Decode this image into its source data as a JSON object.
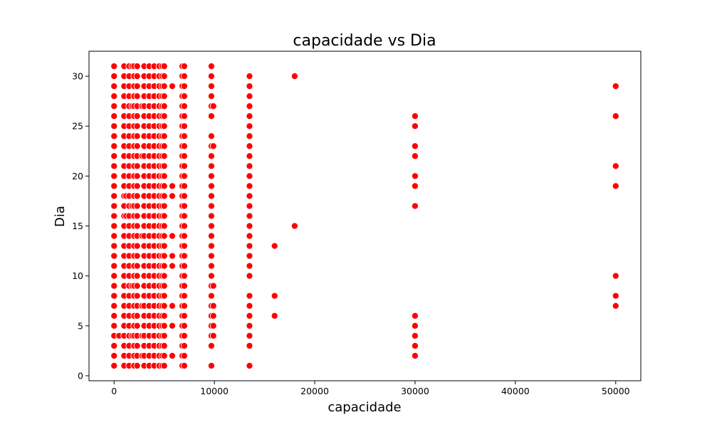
{
  "chart_data": {
    "type": "scatter",
    "title": "capacidade vs Dia",
    "xlabel": "capacidade",
    "ylabel": "Dia",
    "xlim": [
      -2500,
      52500
    ],
    "ylim": [
      -0.5,
      32.5
    ],
    "xticks": [
      0,
      10000,
      20000,
      30000,
      40000,
      50000
    ],
    "yticks": [
      0,
      5,
      10,
      15,
      20,
      25,
      30
    ],
    "xtick_labels": [
      "0",
      "10000",
      "20000",
      "30000",
      "40000",
      "50000"
    ],
    "ytick_labels": [
      "0",
      "5",
      "10",
      "15",
      "20",
      "25",
      "30"
    ],
    "grid": false,
    "legend": "none",
    "marker_color": "#ff0000",
    "marker_edge_color": "#ffffff",
    "series": [
      {
        "columns": [
          {
            "x": 0,
            "days": [
              1,
              2,
              3,
              4,
              5,
              6,
              7,
              8,
              9,
              10,
              11,
              12,
              13,
              14,
              15,
              16,
              17,
              18,
              19,
              20,
              21,
              22,
              23,
              24,
              25,
              26,
              27,
              28,
              29,
              30,
              31
            ]
          },
          {
            "x": 500,
            "days": [
              4
            ]
          },
          {
            "x": 1000,
            "days": [
              1,
              2,
              3,
              4,
              5,
              6,
              7,
              8,
              9,
              10,
              11,
              12,
              13,
              14,
              15,
              16,
              17,
              18,
              19,
              20,
              21,
              22,
              23,
              24,
              25,
              26,
              27,
              28,
              29,
              30,
              31
            ]
          },
          {
            "x": 1200,
            "days": [
              16,
              18
            ]
          },
          {
            "x": 1500,
            "days": [
              1,
              2,
              3,
              4,
              5,
              6,
              7,
              8,
              9,
              10,
              11,
              12,
              13,
              14,
              15,
              16,
              17,
              18,
              19,
              20,
              21,
              22,
              23,
              24,
              25,
              26,
              27,
              28,
              29,
              30,
              31
            ]
          },
          {
            "x": 1800,
            "days": [
              4,
              9,
              17,
              27,
              31
            ]
          },
          {
            "x": 2000,
            "days": [
              1,
              2,
              3,
              4,
              5,
              6,
              7,
              8,
              9,
              10,
              11,
              12,
              13,
              14,
              15,
              16,
              17,
              18,
              19,
              20,
              21,
              22,
              23,
              24,
              25,
              26,
              27,
              28,
              29,
              30,
              31
            ]
          },
          {
            "x": 2300,
            "days": [
              1,
              2,
              3,
              4,
              5,
              6,
              7,
              8,
              9,
              10,
              11,
              12,
              13,
              14,
              15,
              16,
              17,
              18,
              19,
              20,
              21,
              22,
              23,
              24,
              25,
              26,
              27,
              28,
              29,
              30,
              31
            ]
          },
          {
            "x": 2800,
            "days": [
              2,
              4,
              7,
              14,
              22,
              27
            ]
          },
          {
            "x": 3000,
            "days": [
              1,
              2,
              3,
              4,
              5,
              6,
              7,
              8,
              9,
              10,
              11,
              12,
              13,
              14,
              15,
              16,
              17,
              18,
              19,
              20,
              21,
              22,
              23,
              24,
              25,
              26,
              27,
              28,
              29,
              30,
              31
            ]
          },
          {
            "x": 3500,
            "days": [
              1,
              2,
              3,
              4,
              5,
              6,
              7,
              8,
              9,
              10,
              11,
              12,
              13,
              14,
              15,
              16,
              17,
              18,
              19,
              20,
              21,
              22,
              23,
              24,
              25,
              26,
              27,
              28,
              29,
              30,
              31
            ]
          },
          {
            "x": 4000,
            "days": [
              1,
              2,
              3,
              4,
              5,
              6,
              7,
              8,
              9,
              10,
              11,
              12,
              13,
              14,
              15,
              16,
              17,
              18,
              19,
              20,
              21,
              22,
              23,
              24,
              25,
              26,
              27,
              28,
              29,
              30,
              31
            ]
          },
          {
            "x": 4500,
            "days": [
              1,
              2,
              3,
              4,
              5,
              6,
              7,
              8,
              9,
              10,
              11,
              12,
              13,
              14,
              15,
              16,
              17,
              18,
              19,
              20,
              21,
              22,
              23,
              24,
              25,
              26,
              27,
              28,
              29,
              30,
              31
            ]
          },
          {
            "x": 4800,
            "days": [
              1,
              2,
              3,
              4,
              5,
              6,
              7,
              8,
              9,
              10,
              11,
              12,
              13,
              14,
              15,
              16,
              17,
              18,
              19,
              20,
              21,
              22,
              23,
              24,
              25,
              26,
              27,
              28,
              29,
              30,
              31
            ]
          },
          {
            "x": 5000,
            "days": [
              1,
              2,
              3,
              4,
              5,
              6,
              7,
              8,
              9,
              10,
              11,
              12,
              13,
              14,
              15,
              16,
              17,
              18,
              19,
              20,
              21,
              22,
              23,
              24,
              25,
              26,
              27,
              28,
              29,
              30,
              31
            ]
          },
          {
            "x": 5800,
            "days": [
              2,
              5,
              7,
              11,
              12,
              14,
              18,
              19,
              29
            ]
          },
          {
            "x": 6800,
            "days": [
              1,
              2,
              3,
              4,
              5,
              6,
              7,
              8,
              9,
              10,
              11,
              12,
              13,
              14,
              15,
              16,
              17,
              18,
              19,
              20,
              21,
              22,
              23,
              24,
              25,
              26,
              27,
              28,
              29,
              30,
              31
            ]
          },
          {
            "x": 7000,
            "days": [
              1,
              2,
              3,
              4,
              5,
              6,
              7,
              8,
              9,
              10,
              11,
              12,
              13,
              14,
              15,
              16,
              17,
              18,
              19,
              20,
              21,
              22,
              23,
              24,
              25,
              26,
              27,
              28,
              29,
              30,
              31
            ]
          },
          {
            "x": 9700,
            "days": [
              1,
              3,
              4,
              5,
              6,
              7,
              8,
              9,
              10,
              11,
              12,
              13,
              14,
              15,
              16,
              17,
              18,
              19,
              20,
              21,
              22,
              23,
              24,
              26,
              27,
              28,
              29,
              30,
              31
            ]
          },
          {
            "x": 9900,
            "days": [
              4,
              5,
              6,
              7,
              9,
              23,
              27
            ]
          },
          {
            "x": 13500,
            "days": [
              1,
              3,
              4,
              5,
              6,
              7,
              8,
              10,
              11,
              12,
              13,
              14,
              15,
              16,
              17,
              18,
              19,
              20,
              21,
              22,
              23,
              24,
              25,
              26,
              27,
              28,
              29,
              30
            ]
          },
          {
            "x": 16000,
            "days": [
              6,
              8,
              13
            ]
          },
          {
            "x": 18000,
            "days": [
              15,
              30
            ]
          },
          {
            "x": 30000,
            "days": [
              2,
              3,
              4,
              5,
              6,
              17,
              19,
              20,
              22,
              23,
              25,
              26
            ]
          },
          {
            "x": 50000,
            "days": [
              7,
              8,
              10,
              19,
              21,
              26,
              29
            ]
          }
        ]
      }
    ]
  }
}
